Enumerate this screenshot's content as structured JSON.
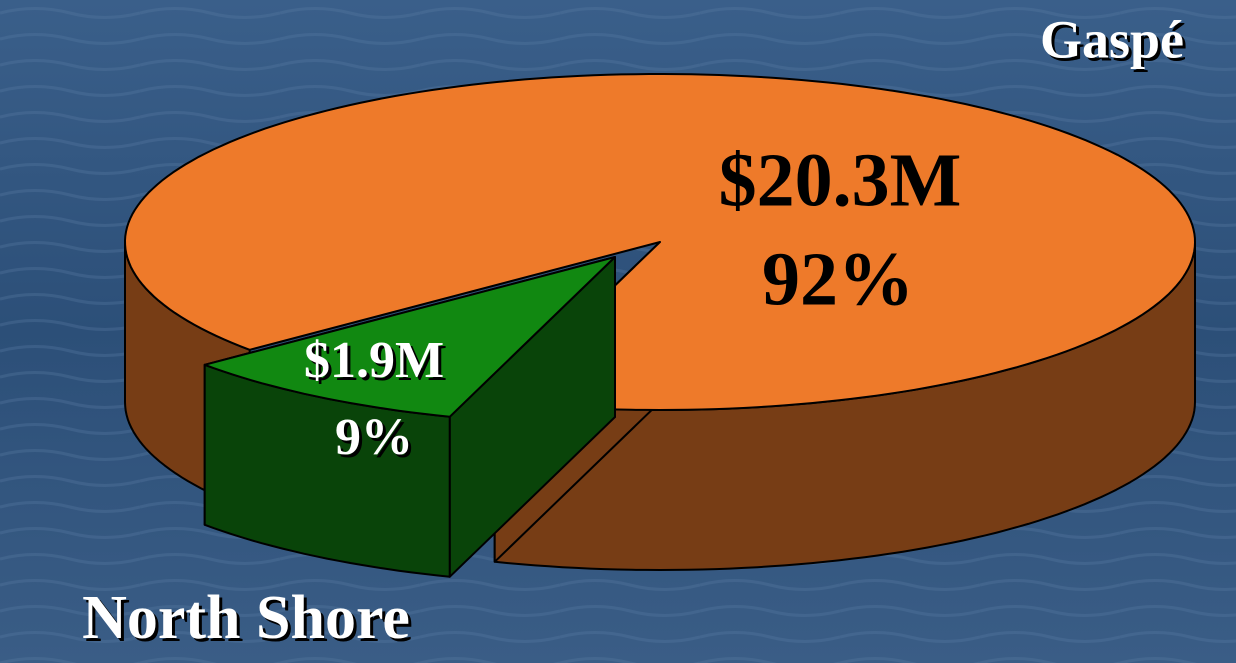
{
  "chart_data": {
    "type": "pie",
    "categories": [
      "Gaspé",
      "North Shore"
    ],
    "values": [
      92,
      9
    ],
    "value_labels": [
      "92%",
      "9%"
    ],
    "amounts": [
      "$20.3M",
      "$1.9M"
    ],
    "colors": [
      "#ee7a2a",
      "#118811"
    ]
  }
}
